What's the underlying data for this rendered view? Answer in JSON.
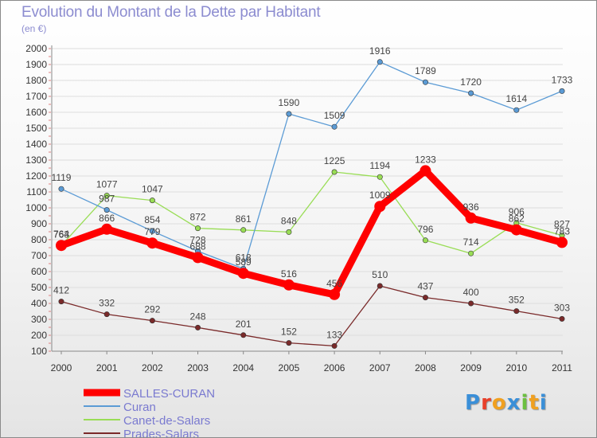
{
  "title": "Evolution du Montant de la Dette par Habitant",
  "subtitle": "(en €)",
  "logo_text": "Proxiti",
  "chart_data": {
    "type": "line",
    "title": "Evolution du Montant de la Dette par Habitant",
    "ylabel": "(en €)",
    "xlabel": "",
    "x": [
      "2000",
      "2001",
      "2002",
      "2003",
      "2004",
      "2005",
      "2006",
      "2007",
      "2008",
      "2009",
      "2010",
      "2011"
    ],
    "ylim": [
      100,
      2000
    ],
    "yticks": [
      100,
      200,
      300,
      400,
      500,
      600,
      700,
      800,
      900,
      1000,
      1100,
      1200,
      1300,
      1400,
      1500,
      1600,
      1700,
      1800,
      1900,
      2000
    ],
    "grid": true,
    "legend": "bottom-left",
    "series": [
      {
        "name": "SALLES-CURAN",
        "color": "#ff0000",
        "values": [
          764,
          866,
          779,
          688,
          589,
          516,
          456,
          1009,
          1233,
          936,
          862,
          783
        ],
        "labels": [
          "764",
          "866",
          "779",
          "688",
          "589",
          "516",
          "456",
          "1009",
          "1233",
          "936",
          "862",
          "783"
        ]
      },
      {
        "name": "Curan",
        "color": "#5b9bd5",
        "values": [
          1119,
          987,
          854,
          728,
          618,
          1590,
          1509,
          1916,
          1789,
          1720,
          1614,
          1733
        ],
        "labels": [
          "1119",
          "987",
          "854",
          "728",
          "618",
          "1590",
          "1509",
          "1916",
          "1789",
          "1720",
          "1614",
          "1733"
        ]
      },
      {
        "name": "Canet-de-Salars",
        "color": "#99dd55",
        "values": [
          763,
          1077,
          1047,
          872,
          861,
          848,
          1225,
          1194,
          796,
          714,
          906,
          827
        ],
        "labels": [
          "763",
          "1077",
          "1047",
          "872",
          "861",
          "848",
          "1225",
          "1194",
          "796",
          "714",
          "906",
          "827"
        ]
      },
      {
        "name": "Prades-Salars",
        "color": "#7a2a2a",
        "values": [
          412,
          332,
          292,
          248,
          201,
          152,
          133,
          510,
          437,
          400,
          352,
          303
        ],
        "labels": [
          "412",
          "332",
          "292",
          "248",
          "201",
          "152",
          "133",
          "510",
          "437",
          "400",
          "352",
          "303"
        ]
      }
    ]
  }
}
